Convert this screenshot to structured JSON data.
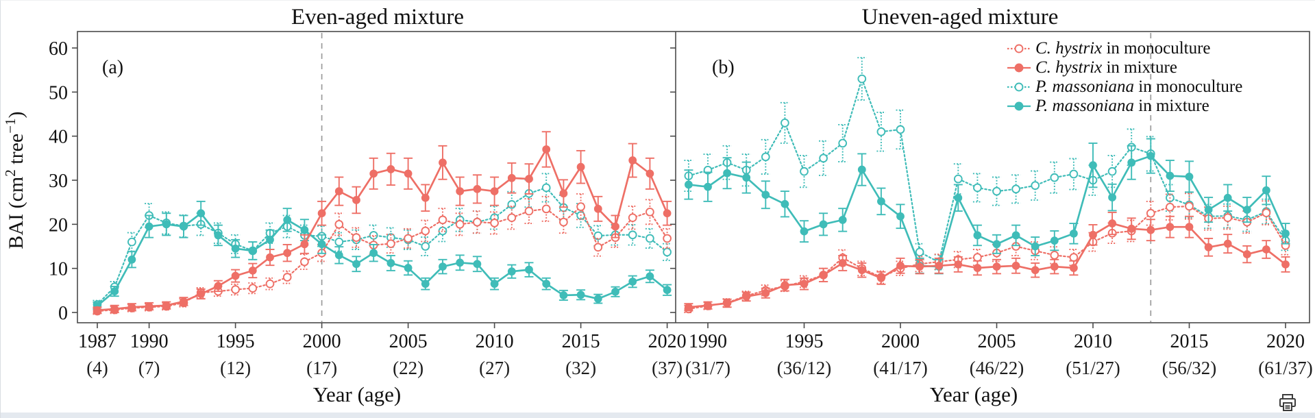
{
  "page": {
    "background": "#ffffff",
    "bottom_bar_color": "#e4e9ef"
  },
  "colors": {
    "c_hystrix": "#ee6f66",
    "p_massoniana": "#3fbcb8",
    "reference_line": "#9a9a9a",
    "axis": "#4a4a4a"
  },
  "figure": {
    "panel_a": {
      "title": "Even-aged mixture",
      "letter": "(a)",
      "xlabel": "Year (age)"
    },
    "panel_b": {
      "title": "Uneven-aged mixture",
      "letter": "(b)",
      "xlabel": "Year (age)"
    },
    "ylabel_parts": [
      {
        "t": "BAI (cm"
      },
      {
        "t": "2",
        "sup": true
      },
      {
        "t": " tree"
      },
      {
        "t": "−1",
        "sup": true
      },
      {
        "t": ")"
      }
    ],
    "legend": [
      {
        "series": "ch_mono",
        "species": "C. hystrix",
        "rest": " in monoculture"
      },
      {
        "series": "ch_mix",
        "species": "C. hystrix",
        "rest": " in mixture"
      },
      {
        "series": "pm_mono",
        "species": "P. massoniana",
        "rest": " in monoculture"
      },
      {
        "series": "pm_mix",
        "species": "P. massoniana",
        "rest": " in mixture"
      }
    ]
  },
  "icons": {
    "print": "printer-icon"
  },
  "chart_data": [
    {
      "type": "line",
      "panel": "a",
      "title": "Even-aged mixture",
      "xlabel": "Year (age)",
      "ylabel": "BAI (cm2 tree-1)",
      "ylim": [
        0,
        60
      ],
      "y_ticks": [
        0,
        10,
        20,
        30,
        40,
        50,
        60
      ],
      "vline_year": 2000,
      "x": [
        1987,
        1988,
        1989,
        1990,
        1991,
        1992,
        1993,
        1994,
        1995,
        1996,
        1997,
        1998,
        1999,
        2000,
        2001,
        2002,
        2003,
        2004,
        2005,
        2006,
        2007,
        2008,
        2009,
        2010,
        2011,
        2012,
        2013,
        2014,
        2015,
        2016,
        2017,
        2018,
        2019,
        2020
      ],
      "x_ticks": [
        {
          "year": 1987,
          "age": "(4)"
        },
        {
          "year": 1990,
          "age": "(7)"
        },
        {
          "year": 1995,
          "age": "(12)"
        },
        {
          "year": 2000,
          "age": "(17)"
        },
        {
          "year": 2005,
          "age": "(22)"
        },
        {
          "year": 2010,
          "age": "(27)"
        },
        {
          "year": 2015,
          "age": "(32)"
        },
        {
          "year": 2020,
          "age": "(37)"
        }
      ],
      "series": [
        {
          "id": "ch_mono",
          "name": "C. hystrix in monoculture",
          "color": "#ee6f66",
          "style": "dotted",
          "marker": "open",
          "values": [
            0.3,
            0.6,
            1.0,
            1.2,
            1.4,
            2.2,
            4.5,
            4.8,
            5.2,
            5.5,
            6.5,
            8.0,
            11.5,
            13.5,
            20.0,
            17.0,
            15.3,
            15.6,
            16.8,
            18.5,
            21.0,
            20.0,
            20.5,
            20.3,
            21.5,
            23.0,
            23.5,
            20.5,
            24.0,
            14.8,
            17.0,
            21.5,
            22.8,
            16.8
          ],
          "err": [
            0.7,
            0.8,
            0.8,
            0.8,
            0.8,
            0.9,
            1.1,
            1.1,
            1.2,
            1.2,
            1.3,
            1.4,
            1.7,
            1.9,
            2.5,
            2.2,
            2.1,
            2.1,
            2.2,
            2.4,
            2.6,
            2.5,
            2.5,
            2.5,
            2.6,
            2.8,
            2.8,
            2.5,
            2.9,
            2.0,
            2.2,
            2.6,
            2.8,
            2.2
          ]
        },
        {
          "id": "ch_mix",
          "name": "C. hystrix in mixture",
          "color": "#ee6f66",
          "style": "solid",
          "marker": "filled",
          "values": [
            0.5,
            0.8,
            1.2,
            1.4,
            1.6,
            2.5,
            4.2,
            6.0,
            8.3,
            9.5,
            12.5,
            13.5,
            15.5,
            22.5,
            27.5,
            25.5,
            31.5,
            32.5,
            31.5,
            26.0,
            34.0,
            27.5,
            28.0,
            27.5,
            30.5,
            30.3,
            37.0,
            27.0,
            33.0,
            23.5,
            19.5,
            34.5,
            31.5,
            22.5
          ],
          "err": [
            0.7,
            0.8,
            0.8,
            0.8,
            0.8,
            0.9,
            1.1,
            1.2,
            1.4,
            1.6,
            1.8,
            1.9,
            2.1,
            2.7,
            3.2,
            3.0,
            3.5,
            3.6,
            3.5,
            3.0,
            3.8,
            3.2,
            3.2,
            3.2,
            3.4,
            3.4,
            4.0,
            3.1,
            3.7,
            2.8,
            2.5,
            3.8,
            3.5,
            2.7
          ]
        },
        {
          "id": "pm_mono",
          "name": "P. massoniana in monoculture",
          "color": "#3fbcb8",
          "style": "dotted",
          "marker": "open",
          "values": [
            1.8,
            5.8,
            16.0,
            22.0,
            20.3,
            19.6,
            20.0,
            18.0,
            15.5,
            14.0,
            18.0,
            19.5,
            17.5,
            17.3,
            16.0,
            16.5,
            17.5,
            17.0,
            16.5,
            15.0,
            18.5,
            21.0,
            20.5,
            21.5,
            24.5,
            27.0,
            28.3,
            23.8,
            22.0,
            17.4,
            17.6,
            17.6,
            16.8,
            13.7
          ],
          "err": [
            0.9,
            1.2,
            2.1,
            2.7,
            2.5,
            2.5,
            2.5,
            2.3,
            2.1,
            2.0,
            2.3,
            2.5,
            2.3,
            2.3,
            2.1,
            2.2,
            2.3,
            2.2,
            2.2,
            2.1,
            2.4,
            2.6,
            2.5,
            2.6,
            2.9,
            3.1,
            3.2,
            2.8,
            2.7,
            2.3,
            2.3,
            2.3,
            2.2,
            1.9
          ]
        },
        {
          "id": "pm_mix",
          "name": "P. massoniana in mixture",
          "color": "#3fbcb8",
          "style": "solid",
          "marker": "filled",
          "values": [
            1.5,
            4.8,
            12.0,
            19.5,
            20.0,
            19.5,
            22.5,
            17.5,
            14.5,
            14.0,
            16.5,
            21.0,
            18.7,
            15.5,
            13.0,
            11.0,
            13.5,
            11.2,
            10.1,
            6.5,
            10.4,
            11.3,
            11.0,
            6.5,
            9.3,
            9.7,
            6.5,
            3.9,
            4.0,
            3.1,
            4.7,
            7.0,
            8.2,
            5.1
          ],
          "err": [
            0.8,
            1.1,
            1.8,
            2.5,
            2.5,
            2.5,
            2.7,
            2.3,
            2.0,
            2.0,
            2.2,
            2.6,
            2.4,
            2.1,
            1.9,
            1.7,
            1.9,
            1.7,
            1.6,
            1.3,
            1.6,
            1.7,
            1.7,
            1.3,
            1.5,
            1.6,
            1.3,
            1.1,
            1.1,
            1.0,
            1.1,
            1.3,
            1.4,
            1.2
          ]
        }
      ]
    },
    {
      "type": "line",
      "panel": "b",
      "title": "Uneven-aged mixture",
      "xlabel": "Year (age)",
      "ylabel": "BAI (cm2 tree-1)",
      "ylim": [
        0,
        60
      ],
      "y_ticks": [
        0,
        10,
        20,
        30,
        40,
        50,
        60
      ],
      "vline_year": 2013,
      "x": [
        1989,
        1990,
        1991,
        1992,
        1993,
        1994,
        1995,
        1996,
        1997,
        1998,
        1999,
        2000,
        2001,
        2002,
        2003,
        2004,
        2005,
        2006,
        2007,
        2008,
        2009,
        2010,
        2011,
        2012,
        2013,
        2014,
        2015,
        2016,
        2017,
        2018,
        2019,
        2020
      ],
      "x_ticks": [
        {
          "year": 1990,
          "age": "(31/7)"
        },
        {
          "year": 1995,
          "age": "(36/12)"
        },
        {
          "year": 2000,
          "age": "(41/17)"
        },
        {
          "year": 2005,
          "age": "(46/22)"
        },
        {
          "year": 2010,
          "age": "(51/27)"
        },
        {
          "year": 2015,
          "age": "(56/32)"
        },
        {
          "year": 2020,
          "age": "(61/37)"
        }
      ],
      "series": [
        {
          "id": "ch_mono",
          "name": "C. hystrix in monoculture",
          "color": "#ee6f66",
          "style": "dotted",
          "marker": "open",
          "values": [
            0.8,
            1.5,
            2.2,
            3.8,
            5.0,
            6.0,
            7.0,
            8.5,
            12.4,
            10.0,
            8.0,
            10.0,
            11.0,
            11.5,
            12.0,
            12.5,
            13.5,
            15.0,
            14.0,
            13.0,
            12.5,
            16.0,
            18.0,
            18.5,
            22.5,
            23.9,
            24.1,
            21.3,
            21.5,
            20.5,
            22.6,
            15.2
          ],
          "err": [
            0.8,
            0.8,
            0.9,
            1.0,
            1.2,
            1.2,
            1.3,
            1.5,
            1.8,
            1.6,
            1.4,
            1.6,
            1.7,
            1.7,
            1.8,
            1.8,
            1.9,
            2.1,
            2.0,
            1.9,
            1.8,
            2.1,
            2.3,
            2.4,
            2.7,
            2.9,
            2.9,
            2.6,
            2.6,
            2.5,
            2.7,
            2.1
          ]
        },
        {
          "id": "ch_mix",
          "name": "C. hystrix in mixture",
          "color": "#ee6f66",
          "style": "solid",
          "marker": "filled",
          "values": [
            1.2,
            1.6,
            2.1,
            3.6,
            4.4,
            6.2,
            6.5,
            8.5,
            11.2,
            9.6,
            7.8,
            10.6,
            10.4,
            10.6,
            10.9,
            10.1,
            10.4,
            10.6,
            9.6,
            10.4,
            10.1,
            17.6,
            20.2,
            19.0,
            18.7,
            19.4,
            19.4,
            14.8,
            15.6,
            13.2,
            14.3,
            10.9
          ],
          "err": [
            0.8,
            0.8,
            0.9,
            1.0,
            1.1,
            1.3,
            1.3,
            1.5,
            1.7,
            1.6,
            1.4,
            1.7,
            1.6,
            1.7,
            1.7,
            1.6,
            1.6,
            1.7,
            1.6,
            1.6,
            1.6,
            2.3,
            2.5,
            2.4,
            2.4,
            2.4,
            2.4,
            2.0,
            2.1,
            1.9,
            2.0,
            1.7
          ]
        },
        {
          "id": "pm_mono",
          "name": "P. massoniana in monoculture",
          "color": "#3fbcb8",
          "style": "dotted",
          "marker": "open",
          "values": [
            31.0,
            32.3,
            34.0,
            32.3,
            35.3,
            43.0,
            32.0,
            35.0,
            38.4,
            53.0,
            41.0,
            41.5,
            13.7,
            11.4,
            30.3,
            28.3,
            27.5,
            28.0,
            28.8,
            30.6,
            31.4,
            30.0,
            32.0,
            37.5,
            36.0,
            26.0,
            24.4,
            21.8,
            21.9,
            21.0,
            22.9,
            16.3
          ],
          "err": [
            3.5,
            3.6,
            3.8,
            3.6,
            3.9,
            4.6,
            3.6,
            3.9,
            4.2,
            4.8,
            4.4,
            4.4,
            1.9,
            1.7,
            3.4,
            3.2,
            3.2,
            3.2,
            3.3,
            3.5,
            3.5,
            3.4,
            3.6,
            4.1,
            3.9,
            3.0,
            2.9,
            2.7,
            2.7,
            2.6,
            2.8,
            2.2
          ]
        },
        {
          "id": "pm_mix",
          "name": "P. massoniana in mixture",
          "color": "#3fbcb8",
          "style": "solid",
          "marker": "filled",
          "values": [
            29.0,
            28.5,
            31.6,
            30.6,
            26.7,
            24.6,
            18.4,
            20.0,
            21.0,
            32.4,
            25.2,
            21.8,
            10.6,
            10.4,
            26.0,
            17.5,
            15.5,
            17.5,
            15.0,
            16.3,
            17.9,
            33.4,
            26.1,
            34.0,
            35.5,
            31.0,
            30.8,
            23.3,
            26.0,
            23.3,
            27.7,
            17.9
          ],
          "err": [
            3.3,
            3.3,
            3.5,
            3.5,
            3.1,
            2.9,
            2.4,
            2.5,
            2.6,
            3.6,
            3.0,
            2.7,
            1.7,
            1.6,
            3.0,
            2.3,
            2.1,
            2.3,
            2.1,
            2.2,
            2.3,
            5.0,
            3.0,
            3.8,
            3.9,
            3.5,
            3.5,
            2.8,
            3.0,
            2.8,
            3.2,
            2.3
          ]
        }
      ]
    }
  ]
}
